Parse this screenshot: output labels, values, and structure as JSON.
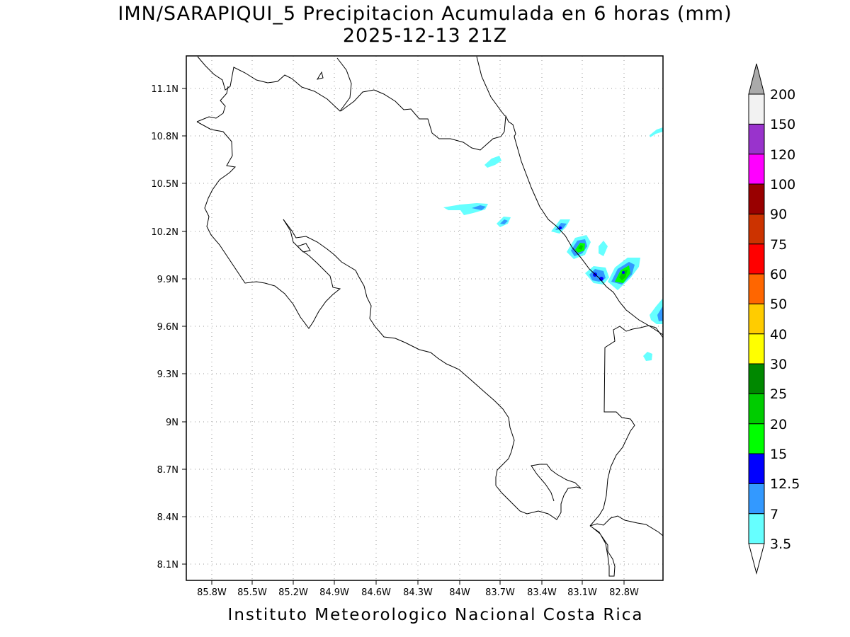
{
  "title": "IMN/SARAPIQUI_5 Precipitacion Acumulada en 6 horas (mm)",
  "subtitle": "2025-12-13 21Z",
  "footer": "Instituto Meteorologico Nacional Costa Rica",
  "map": {
    "lon_range": [
      -86.0,
      -82.5
    ],
    "lat_range": [
      7.95,
      11.3
    ],
    "lon_ticks": [
      "85.8W",
      "85.5W",
      "85.2W",
      "84.9W",
      "84.6W",
      "84.3W",
      "84W",
      "83.7W",
      "83.4W",
      "83.1W",
      "82.8W"
    ],
    "lat_ticks": [
      "11.1N",
      "10.8N",
      "10.5N",
      "10.2N",
      "9.9N",
      "9.6N",
      "9.3N",
      "9N",
      "8.7N",
      "8.4N",
      "8.1N"
    ],
    "grid": true
  },
  "colorbar": {
    "labels": [
      "3.5",
      "7",
      "12.5",
      "15",
      "20",
      "25",
      "30",
      "40",
      "50",
      "60",
      "75",
      "90",
      "100",
      "120",
      "150",
      "200"
    ],
    "colors": [
      "#66ffff",
      "#3399ff",
      "#0000ff",
      "#00ff00",
      "#00cc00",
      "#008800",
      "#ffff00",
      "#ffcc00",
      "#ff6600",
      "#ff0000",
      "#cc3300",
      "#990000",
      "#ff00ff",
      "#9933cc",
      "#f2f2f2",
      "#aaaaaa"
    ],
    "under_color": "#ffffff",
    "over_color": "#aaaaaa"
  }
}
